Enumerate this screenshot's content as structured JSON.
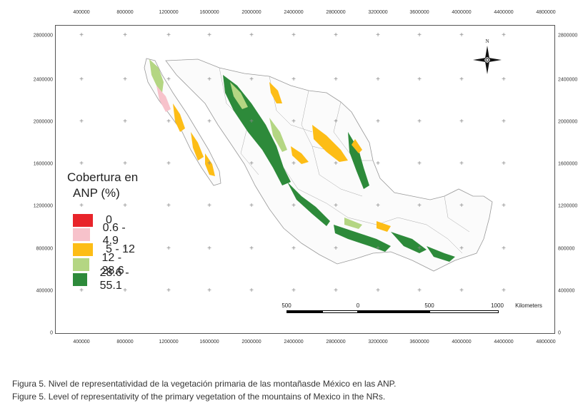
{
  "map": {
    "x_ticks": [
      "400000",
      "800000",
      "1200000",
      "1600000",
      "2000000",
      "2400000",
      "2800000",
      "3200000",
      "3600000",
      "4000000",
      "4400000",
      "4800000"
    ],
    "y_ticks": [
      "2800000",
      "2400000",
      "2000000",
      "1600000",
      "1200000",
      "800000",
      "400000",
      "0"
    ]
  },
  "north_arrow": {
    "label": "N"
  },
  "legend": {
    "title_line1": "Cobertura en",
    "title_line2": "ANP (%)",
    "items": [
      {
        "label": "0",
        "color": "#e8242a"
      },
      {
        "label": "0.6 - 4.9",
        "color": "#f7c2cb"
      },
      {
        "label": "5 - 12",
        "color": "#fdbd16"
      },
      {
        "label": "12 - 28.6",
        "color": "#b4d683"
      },
      {
        "label": "28.6 - 55.1",
        "color": "#2d8a3a"
      }
    ]
  },
  "scale_bar": {
    "labels": [
      "500",
      "0",
      "500",
      "1000"
    ],
    "unit": "Kilometers"
  },
  "captions": {
    "spanish": "Figura 5. Nivel de representatividad de la vegetación primaria de las montañasde México en las ANP.",
    "english": "Figure 5. Level of representativity of the primary vegetation of the mountains of Mexico in the NRs."
  }
}
